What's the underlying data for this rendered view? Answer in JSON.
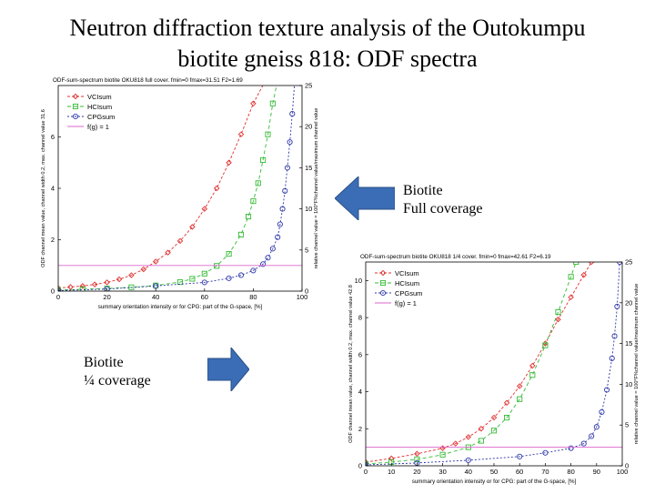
{
  "slide": {
    "title_line1": "Neutron diffraction texture analysis of the Outokumpu",
    "title_line2": "biotite gneiss 818: ODF spectra"
  },
  "captions": {
    "full_line1": "Biotite",
    "full_line2": "Full coverage",
    "quarter_line1": "Biotite",
    "quarter_line2": "¼ coverage"
  },
  "colors": {
    "arrow": "#3a6db5",
    "vcl": "#e03030",
    "hcl": "#33bb33",
    "cpg": "#2b35a8",
    "fg1": "#dd66cc"
  },
  "chart_data": [
    {
      "type": "line",
      "title": "ODF-sum-spectrum biotite OKU818 full cover. fmin=0 fmax=31.51 F2=1.69",
      "xlabel": "summary orientation intensity or for CPG: part of the G-space, [%]",
      "ylabel": "ODF channel mean value, channel width 0.2, max. channel value 31.6",
      "y2label": "relative channel value = 100*F%channel value/maximum channel value",
      "xlim": [
        0,
        100
      ],
      "ylim": [
        0,
        8
      ],
      "y2lim": [
        0,
        25
      ],
      "xticks": [
        "0",
        "20",
        "40",
        "60",
        "80",
        "100"
      ],
      "yticks": [
        "0",
        "2",
        "4",
        "6"
      ],
      "y2ticks": [
        "0",
        "5",
        "10",
        "15",
        "20",
        "25"
      ],
      "legend": [
        "VCIsum",
        "HCIsum",
        "CPGsum",
        "f(g) = 1"
      ],
      "series": [
        {
          "name": "VCIsum",
          "x": [
            0,
            5,
            10,
            15,
            20,
            25,
            30,
            35,
            40,
            45,
            50,
            55,
            60,
            65,
            70,
            75,
            80,
            85
          ],
          "y": [
            0.12,
            0.16,
            0.2,
            0.26,
            0.34,
            0.46,
            0.62,
            0.85,
            1.15,
            1.5,
            1.95,
            2.5,
            3.2,
            4.0,
            5.0,
            6.1,
            7.3,
            8.2
          ]
        },
        {
          "name": "HCIsum",
          "x": [
            0,
            10,
            20,
            30,
            40,
            50,
            55,
            60,
            65,
            70,
            75,
            78,
            80,
            82,
            84,
            86,
            88,
            90
          ],
          "y": [
            0.05,
            0.07,
            0.1,
            0.15,
            0.22,
            0.35,
            0.48,
            0.68,
            0.98,
            1.45,
            2.2,
            2.9,
            3.5,
            4.2,
            5.1,
            6.1,
            7.3,
            8.2
          ]
        },
        {
          "name": "CPGsum",
          "x": [
            0,
            20,
            40,
            60,
            70,
            75,
            80,
            84,
            86,
            88,
            90,
            91,
            92,
            93,
            94,
            95,
            96,
            97
          ],
          "y": [
            0.02,
            0.08,
            0.2,
            0.34,
            0.5,
            0.62,
            0.8,
            1.05,
            1.3,
            1.65,
            2.1,
            2.6,
            3.2,
            3.9,
            4.8,
            5.8,
            6.9,
            8.2
          ]
        },
        {
          "name": "f(g) = 1",
          "x": [
            0,
            100
          ],
          "y": [
            1,
            1
          ]
        }
      ]
    },
    {
      "type": "line",
      "title": "ODF-sum-spectrum biotite OKU818 1/4 cover. fmin=0 fmax=42.61 F2=6.19",
      "xlabel": "summary orientation intensity or for CPG: part of the G-space, [%]",
      "ylabel": "ODF channel mean value, channel width 0.2, max. channel value 42.8",
      "y2label": "relative channel value = 100*F%channel value/maximum channel value",
      "xlim": [
        0,
        100
      ],
      "ylim": [
        0,
        11
      ],
      "y2lim": [
        0,
        25
      ],
      "xticks": [
        "0",
        "10",
        "20",
        "30",
        "40",
        "50",
        "60",
        "70",
        "80",
        "90",
        "100"
      ],
      "yticks": [
        "0",
        "2",
        "4",
        "6",
        "8",
        "10"
      ],
      "y2ticks": [
        "0",
        "5",
        "10",
        "15",
        "20",
        "25"
      ],
      "legend": [
        "VCIsum",
        "HCIsum",
        "CPGsum",
        "f(g) = 1"
      ],
      "series": [
        {
          "name": "VCIsum",
          "x": [
            0,
            10,
            20,
            30,
            35,
            40,
            45,
            50,
            55,
            60,
            65,
            70,
            75,
            80,
            85,
            88
          ],
          "y": [
            0.2,
            0.4,
            0.65,
            0.95,
            1.2,
            1.55,
            2.0,
            2.6,
            3.4,
            4.3,
            5.4,
            6.6,
            7.9,
            9.1,
            10.3,
            11.0
          ]
        },
        {
          "name": "HCIsum",
          "x": [
            0,
            10,
            20,
            30,
            40,
            45,
            50,
            55,
            60,
            65,
            70,
            75,
            80,
            82
          ],
          "y": [
            0.1,
            0.2,
            0.35,
            0.6,
            1.0,
            1.35,
            1.9,
            2.6,
            3.6,
            4.9,
            6.5,
            8.3,
            10.2,
            11.0
          ]
        },
        {
          "name": "CPGsum",
          "x": [
            0,
            20,
            40,
            60,
            70,
            80,
            85,
            88,
            90,
            92,
            94,
            96,
            97,
            98,
            99
          ],
          "y": [
            0.05,
            0.15,
            0.3,
            0.5,
            0.7,
            0.95,
            1.2,
            1.6,
            2.1,
            2.9,
            4.1,
            5.8,
            7.0,
            8.6,
            11.0
          ]
        },
        {
          "name": "f(g) = 1",
          "x": [
            0,
            100
          ],
          "y": [
            1,
            1
          ]
        }
      ]
    }
  ]
}
